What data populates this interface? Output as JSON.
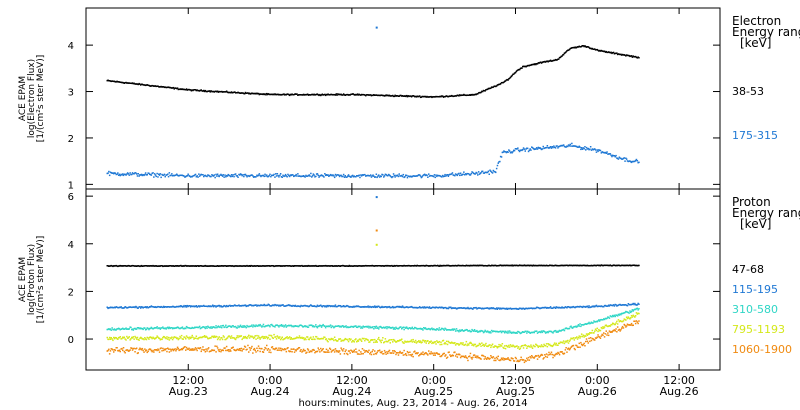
{
  "chart_data": [
    {
      "type": "scatter",
      "panel": "electron",
      "ylabel_lines": [
        "ACE EPAM",
        "log(Electron Flux)",
        "[1/(cm²s ster MeV)]"
      ],
      "ylim": [
        0.9,
        4.8
      ],
      "yticks": [
        1,
        2,
        3,
        4
      ],
      "legend_title_lines": [
        "Electron",
        "Energy ranges",
        "[keV]"
      ],
      "series": [
        {
          "name": "38-53",
          "color": "#000000",
          "noise": 0.02,
          "x": [
            -12,
            0,
            12,
            24,
            36,
            42,
            46,
            47,
            48,
            49,
            52,
            54,
            56,
            58,
            60,
            62,
            64,
            66
          ],
          "values": [
            3.25,
            3.05,
            2.95,
            2.95,
            2.9,
            2.95,
            3.2,
            3.3,
            3.45,
            3.55,
            3.65,
            3.7,
            3.95,
            4.0,
            3.9,
            3.85,
            3.8,
            3.75
          ]
        },
        {
          "name": "175-315",
          "color": "#1f78d4",
          "noise": 0.06,
          "x": [
            -12,
            0,
            12,
            24,
            36,
            42,
            45,
            46,
            48,
            52,
            56,
            58,
            60,
            62,
            64,
            66
          ],
          "values": [
            1.25,
            1.2,
            1.2,
            1.2,
            1.2,
            1.25,
            1.3,
            1.7,
            1.75,
            1.8,
            1.85,
            1.8,
            1.75,
            1.65,
            1.55,
            1.5
          ]
        }
      ],
      "spikes": [
        {
          "x": 27.5,
          "y": 4.4,
          "color": "#1f78d4"
        }
      ]
    },
    {
      "type": "scatter",
      "panel": "proton",
      "ylabel_lines": [
        "ACE EPAM",
        "log(Proton Flux)",
        "[1/(cm²s ster MeV)]"
      ],
      "ylim": [
        -1.3,
        6.3
      ],
      "yticks": [
        0,
        2,
        4,
        6
      ],
      "legend_title_lines": [
        "Proton",
        "Energy ranges",
        "[keV]"
      ],
      "series": [
        {
          "name": "47-68",
          "color": "#000000",
          "noise": 0.02,
          "x": [
            -12,
            0,
            24,
            48,
            66
          ],
          "values": [
            3.1,
            3.1,
            3.1,
            3.12,
            3.12
          ]
        },
        {
          "name": "115-195",
          "color": "#1f78d4",
          "noise": 0.05,
          "x": [
            -12,
            0,
            12,
            24,
            36,
            48,
            60,
            66
          ],
          "values": [
            1.35,
            1.4,
            1.45,
            1.4,
            1.35,
            1.3,
            1.4,
            1.5
          ]
        },
        {
          "name": "310-580",
          "color": "#2fd6c6",
          "noise": 0.08,
          "x": [
            -12,
            0,
            12,
            24,
            36,
            48,
            54,
            60,
            66
          ],
          "values": [
            0.45,
            0.5,
            0.6,
            0.55,
            0.45,
            0.3,
            0.35,
            0.8,
            1.3
          ]
        },
        {
          "name": "795-1193",
          "color": "#d4e81a",
          "noise": 0.14,
          "x": [
            -12,
            0,
            12,
            24,
            36,
            48,
            54,
            60,
            66
          ],
          "values": [
            0.05,
            0.1,
            0.1,
            0.0,
            -0.1,
            -0.3,
            -0.2,
            0.4,
            1.1
          ]
        },
        {
          "name": "1060-1900",
          "color": "#f08a10",
          "noise": 0.18,
          "x": [
            -12,
            0,
            12,
            24,
            36,
            48,
            54,
            60,
            66
          ],
          "values": [
            -0.45,
            -0.4,
            -0.4,
            -0.5,
            -0.6,
            -0.85,
            -0.6,
            0.1,
            0.8
          ]
        }
      ],
      "spikes": [
        {
          "x": 27.5,
          "y": 6.0,
          "color": "#1f78d4"
        },
        {
          "x": 27.5,
          "y": 4.6,
          "color": "#f08a10"
        },
        {
          "x": 27.5,
          "y": 4.0,
          "color": "#d4e81a"
        }
      ]
    }
  ],
  "x_axis": {
    "min": -15,
    "max": 78,
    "ticks": [
      {
        "x": 0,
        "time": "12:00",
        "date": "Aug.23"
      },
      {
        "x": 12,
        "time": "0:00",
        "date": "Aug.24"
      },
      {
        "x": 24,
        "time": "12:00",
        "date": "Aug.24"
      },
      {
        "x": 36,
        "time": "0:00",
        "date": "Aug.25"
      },
      {
        "x": 48,
        "time": "12:00",
        "date": "Aug.25"
      },
      {
        "x": 60,
        "time": "0:00",
        "date": "Aug.26"
      },
      {
        "x": 72,
        "time": "12:00",
        "date": "Aug.26"
      }
    ],
    "xlabel": "hours:minutes, Aug. 23, 2014 - Aug. 26, 2014"
  }
}
